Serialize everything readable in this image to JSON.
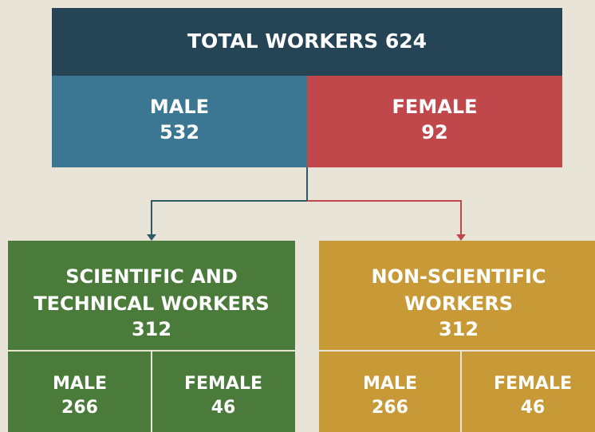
{
  "header": {
    "title": "TOTAL WORKERS 624"
  },
  "split": [
    {
      "label": "MALE",
      "value": 532
    },
    {
      "label": "FEMALE",
      "value": 92
    }
  ],
  "groups": [
    {
      "title_lines": [
        "SCIENTIFIC AND",
        "TECHNICAL WORKERS"
      ],
      "value": 312,
      "parts": [
        {
          "label": "MALE",
          "value": 266
        },
        {
          "label": "FEMALE",
          "value": 46
        }
      ]
    },
    {
      "title_lines": [
        "NON-SCIENTIFIC",
        "WORKERS"
      ],
      "value": 312,
      "parts": [
        {
          "label": "MALE",
          "value": 266
        },
        {
          "label": "FEMALE",
          "value": 46
        }
      ]
    }
  ]
}
